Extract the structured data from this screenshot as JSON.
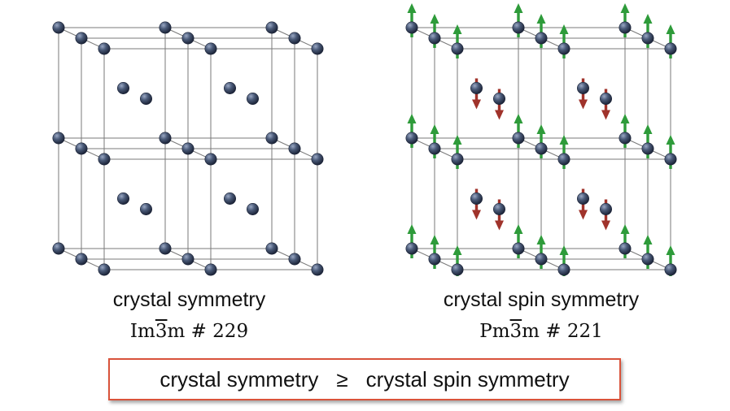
{
  "left_panel": {
    "caption": "crystal symmetry",
    "group_prefix": "Im",
    "group_bar": "3",
    "group_suffix": "m # 229"
  },
  "right_panel": {
    "caption": "crystal spin symmetry",
    "group_prefix": "Pm",
    "group_bar": "3",
    "group_suffix": "m # 221"
  },
  "comparison": {
    "left": "crystal symmetry",
    "operator": "≥",
    "right": "crystal spin symmetry"
  },
  "colors": {
    "atom": "#4a5a78",
    "lattice_line": "#7a7a7a",
    "spin_up": "#2e9b3a",
    "spin_down": "#a0332b",
    "box_border": "#d9533b"
  }
}
